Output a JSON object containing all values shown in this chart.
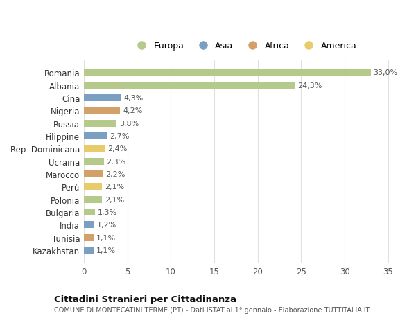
{
  "countries": [
    "Romania",
    "Albania",
    "Cina",
    "Nigeria",
    "Russia",
    "Filippine",
    "Rep. Dominicana",
    "Ucraina",
    "Marocco",
    "Perù",
    "Polonia",
    "Bulgaria",
    "India",
    "Tunisia",
    "Kazakhstan"
  ],
  "values": [
    33.0,
    24.3,
    4.3,
    4.2,
    3.8,
    2.7,
    2.4,
    2.3,
    2.2,
    2.1,
    2.1,
    1.3,
    1.2,
    1.1,
    1.1
  ],
  "labels": [
    "33,0%",
    "24,3%",
    "4,3%",
    "4,2%",
    "3,8%",
    "2,7%",
    "2,4%",
    "2,3%",
    "2,2%",
    "2,1%",
    "2,1%",
    "1,3%",
    "1,2%",
    "1,1%",
    "1,1%"
  ],
  "continents": [
    "Europa",
    "Europa",
    "Asia",
    "Africa",
    "Europa",
    "Asia",
    "America",
    "Europa",
    "Africa",
    "America",
    "Europa",
    "Europa",
    "Asia",
    "Africa",
    "Asia"
  ],
  "colors": {
    "Europa": "#b5c98a",
    "Asia": "#7a9fc0",
    "Africa": "#d4a06a",
    "America": "#e8cc6b"
  },
  "background_color": "#ffffff",
  "grid_color": "#e0e0e0",
  "title": "Cittadini Stranieri per Cittadinanza",
  "subtitle": "COMUNE DI MONTECATINI TERME (PT) - Dati ISTAT al 1° gennaio - Elaborazione TUTTITALIA.IT",
  "xlim": [
    0,
    37
  ],
  "xticks": [
    0,
    5,
    10,
    15,
    20,
    25,
    30,
    35
  ],
  "legend_order": [
    "Europa",
    "Asia",
    "Africa",
    "America"
  ]
}
